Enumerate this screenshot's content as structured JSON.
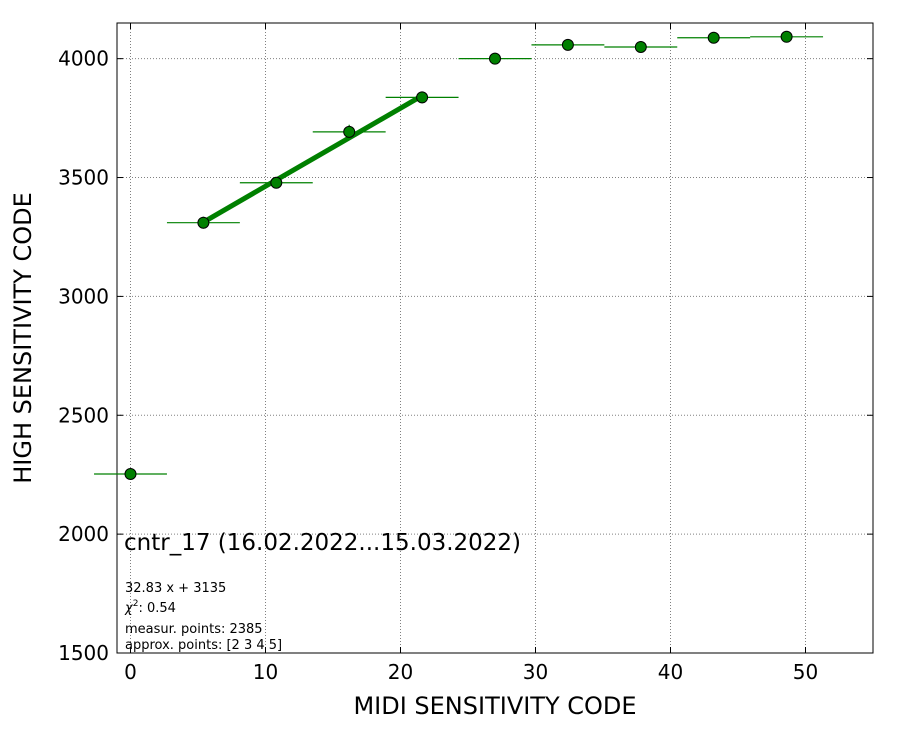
{
  "chart_data": {
    "type": "scatter",
    "title": "",
    "xlabel": "MIDI SENSITIVITY CODE",
    "ylabel": "HIGH SENSITIVITY CODE",
    "xlim": [
      -1,
      55
    ],
    "ylim": [
      1500,
      4150
    ],
    "grid": true,
    "x_ticks": [
      0,
      10,
      20,
      30,
      40,
      50
    ],
    "y_ticks": [
      1500,
      2000,
      2500,
      3000,
      3500,
      4000
    ],
    "colors": {
      "points": "#008000",
      "fit": "#008000",
      "errorbars": "#008000",
      "marker_edge": "#000000"
    },
    "points": [
      {
        "x": 0.0,
        "y": 2253,
        "xerr": 2.7,
        "yerr": 0
      },
      {
        "x": 5.4,
        "y": 3310,
        "xerr": 2.7,
        "yerr": 25
      },
      {
        "x": 10.8,
        "y": 3478,
        "xerr": 2.7,
        "yerr": 20
      },
      {
        "x": 16.2,
        "y": 3692,
        "xerr": 2.7,
        "yerr": 30
      },
      {
        "x": 21.6,
        "y": 3837,
        "xerr": 2.7,
        "yerr": 25
      },
      {
        "x": 27.0,
        "y": 4000,
        "xerr": 2.7,
        "yerr": 20
      },
      {
        "x": 32.4,
        "y": 4058,
        "xerr": 2.7,
        "yerr": 10
      },
      {
        "x": 37.8,
        "y": 4049,
        "xerr": 2.7,
        "yerr": 10
      },
      {
        "x": 43.2,
        "y": 4088,
        "xerr": 2.7,
        "yerr": 10
      },
      {
        "x": 48.6,
        "y": 4092,
        "xerr": 2.7,
        "yerr": 10
      }
    ],
    "fit": {
      "slope": 32.83,
      "intercept": 3135,
      "x_range": [
        5.4,
        21.6
      ]
    },
    "annotations": {
      "series_label": "cntr_17 (16.02.2022...15.03.2022)",
      "equation": "32.83 x + 3135",
      "chi2_label": "χ",
      "chi2_exp": "2",
      "chi2_value": ": 0.54",
      "measur": "measur. points: 2385",
      "approx": "approx. points: [2 3 4 5]"
    }
  }
}
